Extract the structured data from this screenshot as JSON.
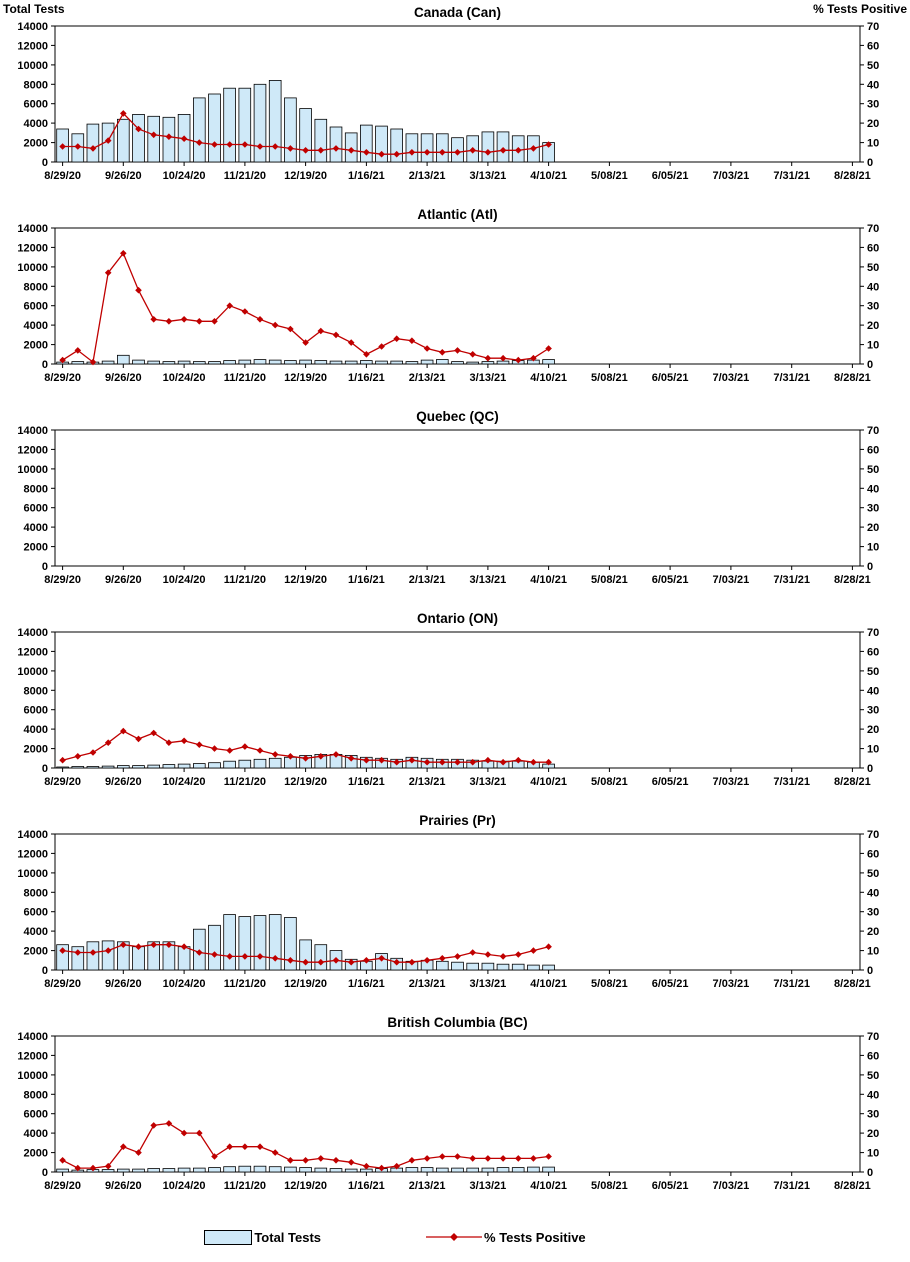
{
  "colors": {
    "bar_fill": "#cfe9f8",
    "bar_stroke": "#000000",
    "line_color": "#c00000",
    "axis_color": "#000000"
  },
  "legend": {
    "total_tests": "Total Tests",
    "pct_positive": "% Tests Positive"
  },
  "chart_data": {
    "type": "bar+line",
    "categories": [
      "8/29/20",
      "9/5/20",
      "9/12/20",
      "9/19/20",
      "9/26/20",
      "10/3/20",
      "10/10/20",
      "10/17/20",
      "10/24/20",
      "10/31/20",
      "11/7/20",
      "11/14/20",
      "11/21/20",
      "11/28/20",
      "12/5/20",
      "12/12/20",
      "12/19/20",
      "12/26/20",
      "1/2/21",
      "1/9/21",
      "1/16/21",
      "1/23/21",
      "1/30/21",
      "2/6/21",
      "2/13/21",
      "2/20/21",
      "2/27/21",
      "3/6/21",
      "3/13/21",
      "3/20/21",
      "3/27/21",
      "4/3/21",
      "4/10/21"
    ],
    "x_axis_tick_labels": [
      "8/29/20",
      "9/26/20",
      "10/24/20",
      "11/21/20",
      "12/19/20",
      "1/16/21",
      "2/13/21",
      "3/13/21",
      "4/10/21",
      "5/08/21",
      "6/05/21",
      "7/03/21",
      "7/31/21",
      "8/28/21"
    ],
    "left_axis": {
      "title": "Total Tests",
      "min": 0,
      "max": 14000,
      "tick_step": 2000,
      "ticks": [
        0,
        2000,
        4000,
        6000,
        8000,
        10000,
        12000,
        14000
      ]
    },
    "right_axis": {
      "title": "% Tests Positive",
      "min": 0,
      "max": 70,
      "tick_step": 10,
      "ticks": [
        0,
        10,
        20,
        30,
        40,
        50,
        60,
        70
      ]
    },
    "panels": [
      {
        "title": "Canada (Can)",
        "total_tests": [
          3400,
          2900,
          3900,
          4000,
          4400,
          4900,
          4700,
          4600,
          4900,
          6600,
          7000,
          7600,
          7600,
          8000,
          8400,
          6600,
          5500,
          4400,
          3600,
          3000,
          3800,
          3700,
          3400,
          2900,
          2900,
          2900,
          2500,
          2700,
          3100,
          3100,
          2700,
          2700,
          2000
        ],
        "pct_tests_positive": [
          8,
          8,
          7,
          11,
          25,
          17,
          14,
          13,
          12,
          10,
          9,
          9,
          9,
          8,
          8,
          7,
          6,
          6,
          7,
          6,
          5,
          4,
          4,
          5,
          5,
          5,
          5,
          6,
          5,
          6,
          6,
          7,
          9
        ]
      },
      {
        "title": "Atlantic (Atl)",
        "total_tests": [
          200,
          250,
          200,
          300,
          900,
          400,
          300,
          250,
          300,
          250,
          250,
          350,
          400,
          450,
          400,
          350,
          400,
          350,
          300,
          300,
          350,
          300,
          300,
          250,
          400,
          450,
          250,
          200,
          250,
          300,
          350,
          400,
          450
        ],
        "pct_tests_positive": [
          2,
          7,
          1,
          47,
          57,
          38,
          23,
          22,
          23,
          22,
          22,
          30,
          27,
          23,
          20,
          18,
          11,
          17,
          15,
          11,
          5,
          9,
          13,
          12,
          8,
          6,
          7,
          5,
          3,
          3,
          2,
          3,
          8
        ]
      },
      {
        "title": "Quebec (QC)",
        "total_tests": [],
        "pct_tests_positive": []
      },
      {
        "title": "Ontario (ON)",
        "total_tests": [
          100,
          150,
          150,
          200,
          250,
          250,
          300,
          350,
          400,
          450,
          550,
          700,
          800,
          900,
          1000,
          1100,
          1300,
          1400,
          1400,
          1300,
          1100,
          1000,
          900,
          1100,
          1000,
          900,
          900,
          800,
          700,
          700,
          700,
          600,
          400
        ],
        "pct_tests_positive": [
          4,
          6,
          8,
          13,
          19,
          15,
          18,
          13,
          14,
          12,
          10,
          9,
          11,
          9,
          7,
          6,
          5,
          6,
          7,
          5,
          4,
          4,
          3,
          4,
          3,
          3,
          3,
          3,
          4,
          3,
          4,
          3,
          3
        ]
      },
      {
        "title": "Prairies (Pr)",
        "total_tests": [
          2600,
          2400,
          2900,
          3000,
          2900,
          2400,
          2900,
          2900,
          2400,
          4200,
          4600,
          5700,
          5500,
          5600,
          5700,
          5400,
          3100,
          2600,
          2000,
          1100,
          900,
          1700,
          1200,
          900,
          1000,
          900,
          800,
          700,
          700,
          600,
          600,
          500,
          500
        ],
        "pct_tests_positive": [
          10,
          9,
          9,
          10,
          13,
          12,
          13,
          13,
          12,
          9,
          8,
          7,
          7,
          7,
          6,
          5,
          4,
          4,
          5,
          4,
          5,
          6,
          4,
          4,
          5,
          6,
          7,
          9,
          8,
          7,
          8,
          10,
          12
        ]
      },
      {
        "title": "British Columbia (BC)",
        "total_tests": [
          300,
          200,
          250,
          250,
          300,
          300,
          350,
          350,
          400,
          400,
          450,
          550,
          600,
          600,
          550,
          500,
          450,
          400,
          350,
          300,
          300,
          350,
          400,
          450,
          450,
          400,
          400,
          400,
          400,
          450,
          450,
          500,
          500
        ],
        "pct_tests_positive": [
          6,
          2,
          2,
          3,
          13,
          10,
          24,
          25,
          20,
          20,
          8,
          13,
          13,
          13,
          10,
          6,
          6,
          7,
          6,
          5,
          3,
          2,
          3,
          6,
          7,
          8,
          8,
          7,
          7,
          7,
          7,
          7,
          8
        ]
      }
    ]
  }
}
